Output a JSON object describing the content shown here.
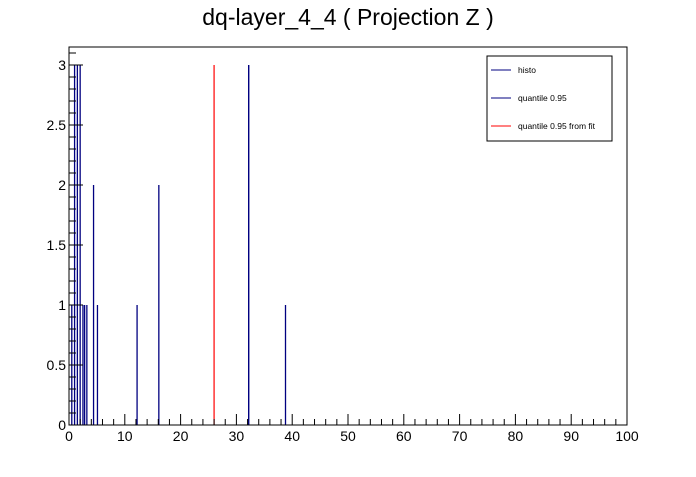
{
  "chart_data": {
    "type": "bar",
    "title": "dq-layer_4_4 ( Projection Z )",
    "xlim": [
      0,
      100
    ],
    "ylim": [
      0,
      3.15
    ],
    "x_ticks": [
      0,
      10,
      20,
      30,
      40,
      50,
      60,
      70,
      80,
      90,
      100
    ],
    "y_ticks": [
      0,
      0.5,
      1,
      1.5,
      2,
      2.5,
      3
    ],
    "x_tick_labels": [
      "0",
      "10",
      "20",
      "30",
      "40",
      "50",
      "60",
      "70",
      "80",
      "90",
      "100"
    ],
    "y_tick_labels": [
      "0",
      "0.5",
      "1",
      "1.5",
      "2",
      "2.5",
      "3"
    ],
    "grid": false,
    "legend_position": "top-right",
    "series": [
      {
        "name": "histo",
        "color": "#000080",
        "x": [
          0.5,
          1.0,
          1.5,
          2.0,
          2.5,
          2.8,
          3.2,
          4.4,
          5.1,
          12.2,
          16.1,
          32.2,
          38.8
        ],
        "values": [
          1,
          3,
          3,
          3,
          1,
          1,
          1,
          2,
          1,
          1,
          2,
          3,
          1
        ]
      }
    ],
    "lines": [
      {
        "name": "quantile 0.95",
        "color": "#000080",
        "x": 32.2,
        "height": 3
      },
      {
        "name": "quantile 0.95 from fit",
        "color": "#ff0000",
        "x": 26.0,
        "height": 3
      }
    ]
  }
}
